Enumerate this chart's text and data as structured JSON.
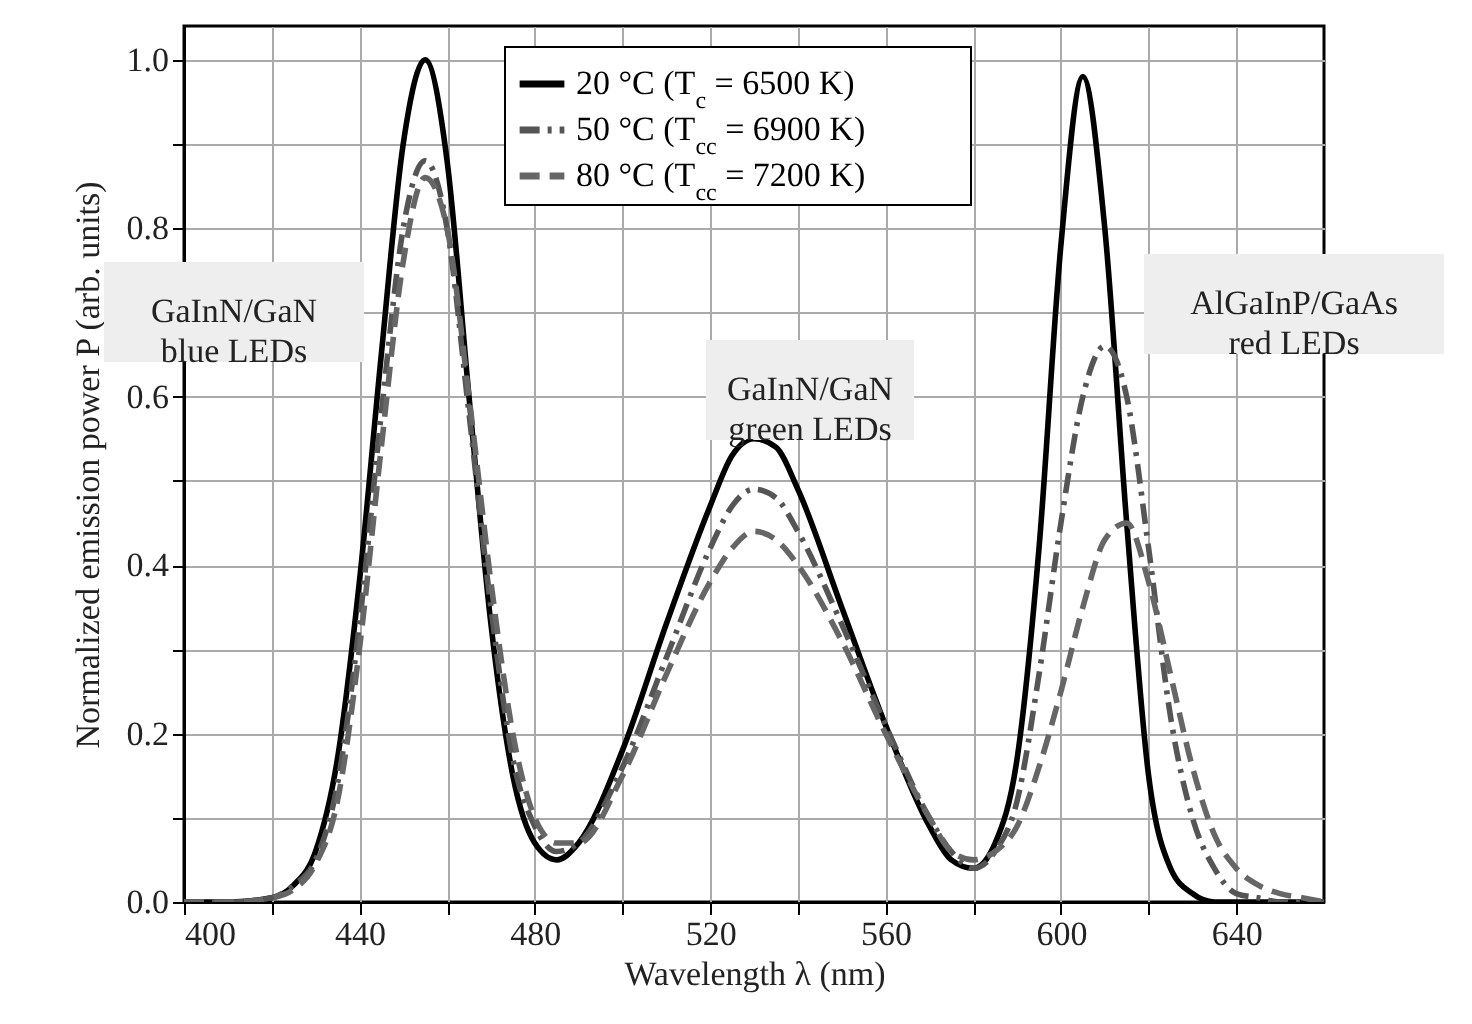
{
  "chart_data": {
    "type": "line",
    "xlabel": "Wavelength λ (nm)",
    "ylabel": "Normalized emission power P (arb. units)",
    "x": [
      400,
      410,
      420,
      425,
      430,
      435,
      440,
      445,
      450,
      455,
      460,
      465,
      470,
      475,
      480,
      485,
      490,
      500,
      510,
      520,
      525,
      530,
      535,
      540,
      550,
      560,
      570,
      575,
      580,
      585,
      590,
      595,
      600,
      605,
      610,
      615,
      620,
      625,
      630,
      635,
      640,
      645,
      650,
      655,
      660
    ],
    "series": [
      {
        "name": "20 °C (T$_{c}$  = 6500 K)",
        "color": "#000000",
        "line_style": "solid",
        "values": [
          0,
          0,
          0.005,
          0.02,
          0.06,
          0.17,
          0.38,
          0.65,
          0.9,
          1.0,
          0.88,
          0.6,
          0.33,
          0.15,
          0.07,
          0.05,
          0.07,
          0.18,
          0.33,
          0.47,
          0.53,
          0.55,
          0.54,
          0.49,
          0.35,
          0.21,
          0.09,
          0.05,
          0.04,
          0.07,
          0.17,
          0.42,
          0.78,
          0.98,
          0.8,
          0.45,
          0.15,
          0.04,
          0.01,
          0,
          0,
          0,
          0,
          0,
          0
        ]
      },
      {
        "name": "50 °C (T$_{cc}$ = 6900 K)",
        "color": "#555555",
        "line_style": "dashdot",
        "values": [
          0,
          0,
          0.005,
          0.02,
          0.05,
          0.14,
          0.33,
          0.58,
          0.8,
          0.88,
          0.8,
          0.58,
          0.35,
          0.17,
          0.09,
          0.06,
          0.07,
          0.16,
          0.29,
          0.42,
          0.47,
          0.49,
          0.48,
          0.44,
          0.33,
          0.21,
          0.1,
          0.06,
          0.04,
          0.06,
          0.12,
          0.27,
          0.45,
          0.6,
          0.66,
          0.6,
          0.42,
          0.22,
          0.1,
          0.04,
          0.01,
          0.005,
          0,
          0,
          0
        ]
      },
      {
        "name": "80 °C (T$_{cc}$ = 7200 K)",
        "color": "#666666",
        "line_style": "dashed",
        "values": [
          0,
          0,
          0.005,
          0.015,
          0.045,
          0.12,
          0.3,
          0.54,
          0.76,
          0.86,
          0.8,
          0.6,
          0.38,
          0.2,
          0.1,
          0.07,
          0.07,
          0.15,
          0.27,
          0.38,
          0.42,
          0.44,
          0.43,
          0.4,
          0.31,
          0.2,
          0.1,
          0.06,
          0.05,
          0.06,
          0.09,
          0.16,
          0.25,
          0.35,
          0.43,
          0.45,
          0.38,
          0.27,
          0.16,
          0.08,
          0.04,
          0.02,
          0.01,
          0.005,
          0
        ]
      }
    ],
    "xlim": [
      400,
      660
    ],
    "ylim": [
      0,
      1.04
    ],
    "xticks": [
      400,
      {
        "value": 420,
        "label": null
      },
      440,
      {
        "value": 460,
        "label": null
      },
      480,
      {
        "value": 500,
        "label": null
      },
      520,
      {
        "value": 540,
        "label": null
      },
      560,
      {
        "value": 580,
        "label": null
      },
      600,
      {
        "value": 620,
        "label": null
      },
      640
    ],
    "yticks": [
      {
        "value": 0,
        "label": "0.0"
      },
      {
        "value": 0.1,
        "label": null
      },
      0.2,
      {
        "value": 0.3,
        "label": null
      },
      0.4,
      {
        "value": 0.5,
        "label": null
      },
      0.6,
      {
        "value": 0.7,
        "label": null
      },
      0.8,
      {
        "value": 0.9,
        "label": null
      },
      {
        "value": 1,
        "label": "1.0"
      }
    ],
    "grid": true,
    "legend": "top",
    "annotations": [
      "GaInN/GaN\nblue LEDs",
      "GaInN/GaN\ngreen LEDs",
      "AlGaInP/GaAs\nred LEDs"
    ]
  }
}
